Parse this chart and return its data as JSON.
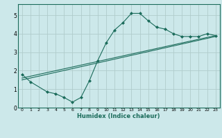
{
  "background_color": "#cce8ea",
  "grid_color": "#b0cccc",
  "line_color": "#1a6b5a",
  "marker_color": "#1a6b5a",
  "xlabel": "Humidex (Indice chaleur)",
  "xlim": [
    -0.5,
    23.5
  ],
  "ylim": [
    0,
    5.6
  ],
  "yticks": [
    0,
    1,
    2,
    3,
    4,
    5
  ],
  "xticks": [
    0,
    1,
    2,
    3,
    4,
    5,
    6,
    7,
    8,
    9,
    10,
    11,
    12,
    13,
    14,
    15,
    16,
    17,
    18,
    19,
    20,
    21,
    22,
    23
  ],
  "series": [
    {
      "x": [
        0,
        1,
        3,
        4,
        5,
        6,
        7,
        8,
        9,
        10,
        11,
        12,
        13,
        14,
        15,
        16,
        17,
        18,
        19,
        20,
        21,
        22,
        23
      ],
      "y": [
        1.8,
        1.4,
        0.85,
        0.75,
        0.55,
        0.3,
        0.55,
        1.45,
        2.55,
        3.5,
        4.2,
        4.6,
        5.1,
        5.1,
        4.7,
        4.35,
        4.25,
        4.0,
        3.85,
        3.85,
        3.85,
        4.0,
        3.9
      ]
    },
    {
      "x": [
        0,
        23
      ],
      "y": [
        1.6,
        3.9
      ]
    },
    {
      "x": [
        0,
        23
      ],
      "y": [
        1.5,
        3.85
      ]
    }
  ]
}
